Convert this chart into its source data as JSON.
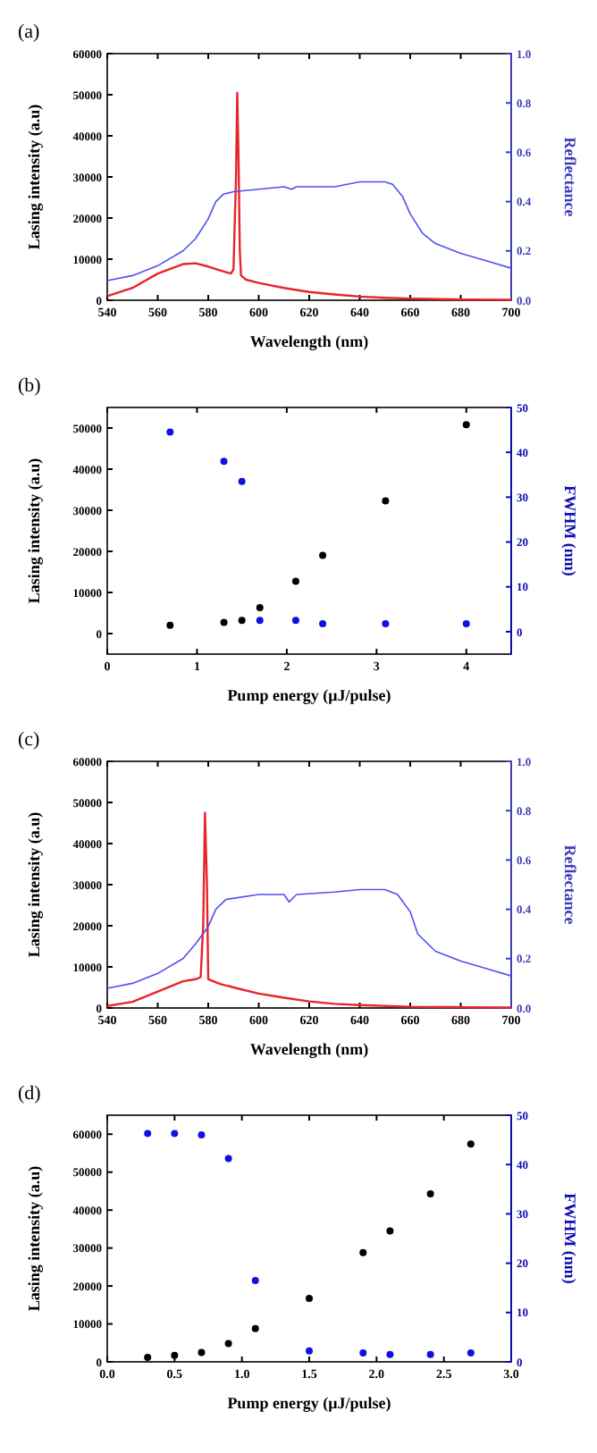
{
  "chart_data": [
    {
      "type": "line",
      "title": "(a)",
      "xlabel": "Wavelength (nm)",
      "ylabel": "Lasing intensity (a.u)",
      "y2label": "Reflectance",
      "xlim": [
        540,
        700
      ],
      "xticks": [
        540,
        560,
        580,
        600,
        620,
        640,
        660,
        680,
        700
      ],
      "ylim": [
        0,
        60000
      ],
      "yticks": [
        0,
        10000,
        20000,
        30000,
        40000,
        50000,
        60000
      ],
      "y2lim": [
        0,
        1
      ],
      "y2ticks": [
        {
          "value": 0,
          "label": "0.0"
        },
        {
          "value": 0.2,
          "label": "0.2"
        },
        {
          "value": 0.4,
          "label": "0.4"
        },
        {
          "value": 0.6,
          "label": "0.6"
        },
        {
          "value": 0.8,
          "label": "0.8"
        },
        {
          "value": 1,
          "label": "1.0"
        }
      ],
      "series": [
        {
          "color": "#e8242b",
          "x": [
            540,
            550,
            560,
            570,
            575,
            580,
            585,
            589,
            590,
            591,
            591.5,
            592,
            592.5,
            593,
            595,
            600,
            610,
            620,
            630,
            640,
            650,
            660,
            680,
            700
          ],
          "values": [
            1000,
            3000,
            6500,
            8800,
            9000,
            8200,
            7200,
            6500,
            7500,
            30000,
            50500,
            35000,
            12000,
            6000,
            5000,
            4200,
            3000,
            2000,
            1400,
            900,
            600,
            400,
            200,
            100
          ]
        },
        {
          "color": "#5050f0",
          "axis": "y2",
          "x": [
            540,
            550,
            560,
            570,
            575,
            580,
            583,
            586,
            590,
            600,
            610,
            613,
            615,
            630,
            640,
            650,
            653,
            657,
            660,
            665,
            670,
            680,
            690,
            700
          ],
          "values": [
            0.08,
            0.1,
            0.14,
            0.2,
            0.25,
            0.33,
            0.4,
            0.43,
            0.44,
            0.45,
            0.46,
            0.45,
            0.46,
            0.46,
            0.48,
            0.48,
            0.47,
            0.42,
            0.35,
            0.27,
            0.23,
            0.19,
            0.16,
            0.13
          ]
        }
      ]
    },
    {
      "type": "scatter",
      "title": "(b)",
      "xlabel": "Pump energy (μJ/pulse)",
      "ylabel": "Lasing intensity (a.u)",
      "y2label": "FWHM (nm)",
      "xlim": [
        0,
        4.5
      ],
      "xticks": [
        0,
        1,
        2,
        3,
        4
      ],
      "ylim": [
        -5000,
        55000
      ],
      "yticks": [
        0,
        10000,
        20000,
        30000,
        40000,
        50000
      ],
      "y2lim": [
        -5,
        50
      ],
      "y2ticks": [
        0,
        10,
        20,
        30,
        40,
        50
      ],
      "marker": "circle",
      "series": [
        {
          "color": "#000000",
          "x": [
            0.7,
            1.3,
            1.5,
            1.7,
            2.1,
            2.4,
            3.1,
            4
          ],
          "values": [
            2000,
            2700,
            3200,
            6300,
            12700,
            19000,
            32300,
            50800
          ]
        },
        {
          "color": "#1010e0",
          "axis": "y2",
          "x": [
            0.7,
            1.3,
            1.5,
            1.7,
            2.1,
            2.4,
            3.1,
            4
          ],
          "values": [
            44.5,
            38,
            33.5,
            2.5,
            2.5,
            1.8,
            1.8,
            1.8
          ]
        }
      ]
    },
    {
      "type": "line",
      "title": "(c)",
      "xlabel": "Wavelength (nm)",
      "ylabel": "Lasing intensity (a.u)",
      "y2label": "Reflectance",
      "xlim": [
        540,
        700
      ],
      "xticks": [
        540,
        560,
        580,
        600,
        620,
        640,
        660,
        680,
        700
      ],
      "ylim": [
        0,
        60000
      ],
      "yticks": [
        0,
        10000,
        20000,
        30000,
        40000,
        50000,
        60000
      ],
      "y2lim": [
        0,
        1
      ],
      "y2ticks": [
        {
          "value": 0,
          "label": "0.0"
        },
        {
          "value": 0.2,
          "label": "0.2"
        },
        {
          "value": 0.4,
          "label": "0.4"
        },
        {
          "value": 0.6,
          "label": "0.6"
        },
        {
          "value": 0.8,
          "label": "0.8"
        },
        {
          "value": 1,
          "label": "1.0"
        }
      ],
      "series": [
        {
          "color": "#e8242b",
          "x": [
            540,
            550,
            560,
            570,
            575,
            577,
            578,
            578.7,
            579.5,
            580,
            585,
            590,
            600,
            610,
            620,
            630,
            640,
            660,
            680,
            700
          ],
          "values": [
            500,
            1500,
            4000,
            6500,
            7000,
            7500,
            20000,
            47500,
            30000,
            7000,
            5800,
            5000,
            3500,
            2500,
            1600,
            1000,
            700,
            300,
            200,
            100
          ]
        },
        {
          "color": "#5050f0",
          "axis": "y2",
          "x": [
            540,
            550,
            560,
            570,
            575,
            580,
            583,
            587,
            600,
            610,
            612,
            615,
            630,
            640,
            650,
            655,
            660,
            663,
            670,
            680,
            690,
            700
          ],
          "values": [
            0.08,
            0.1,
            0.14,
            0.2,
            0.26,
            0.33,
            0.4,
            0.44,
            0.46,
            0.46,
            0.43,
            0.46,
            0.47,
            0.48,
            0.48,
            0.46,
            0.39,
            0.3,
            0.23,
            0.19,
            0.16,
            0.13
          ]
        }
      ]
    },
    {
      "type": "scatter",
      "title": "(d)",
      "xlabel": "Pump energy (μJ/pulse)",
      "ylabel": "Lasing intensity (a.u)",
      "y2label": "FWHM (nm)",
      "xlim": [
        0,
        3
      ],
      "xticks": [
        {
          "value": 0,
          "label": "0.0"
        },
        {
          "value": 0.5,
          "label": "0.5"
        },
        {
          "value": 1,
          "label": "1.0"
        },
        {
          "value": 1.5,
          "label": "1.5"
        },
        {
          "value": 2,
          "label": "2.0"
        },
        {
          "value": 2.5,
          "label": "2.5"
        },
        {
          "value": 3,
          "label": "3.0"
        }
      ],
      "ylim": [
        0,
        65000
      ],
      "yticks": [
        0,
        10000,
        20000,
        30000,
        40000,
        50000,
        60000
      ],
      "y2lim": [
        0,
        50
      ],
      "y2ticks": [
        0,
        10,
        20,
        30,
        40,
        50
      ],
      "marker": "circle",
      "series": [
        {
          "color": "#000000",
          "x": [
            0.3,
            0.5,
            0.7,
            0.9,
            1.1,
            1.5,
            1.9,
            2.1,
            2.4,
            2.7
          ],
          "values": [
            1200,
            1700,
            2500,
            4800,
            8800,
            16700,
            28800,
            34500,
            44300,
            57400
          ]
        },
        {
          "color": "#1010e0",
          "axis": "y2",
          "x": [
            0.3,
            0.5,
            0.7,
            0.9,
            1.1,
            1.5,
            1.9,
            2.1,
            2.4,
            2.7
          ],
          "values": [
            46.3,
            46.3,
            46,
            41.2,
            16.5,
            2.2,
            1.8,
            1.5,
            1.5,
            1.8
          ]
        }
      ]
    }
  ]
}
